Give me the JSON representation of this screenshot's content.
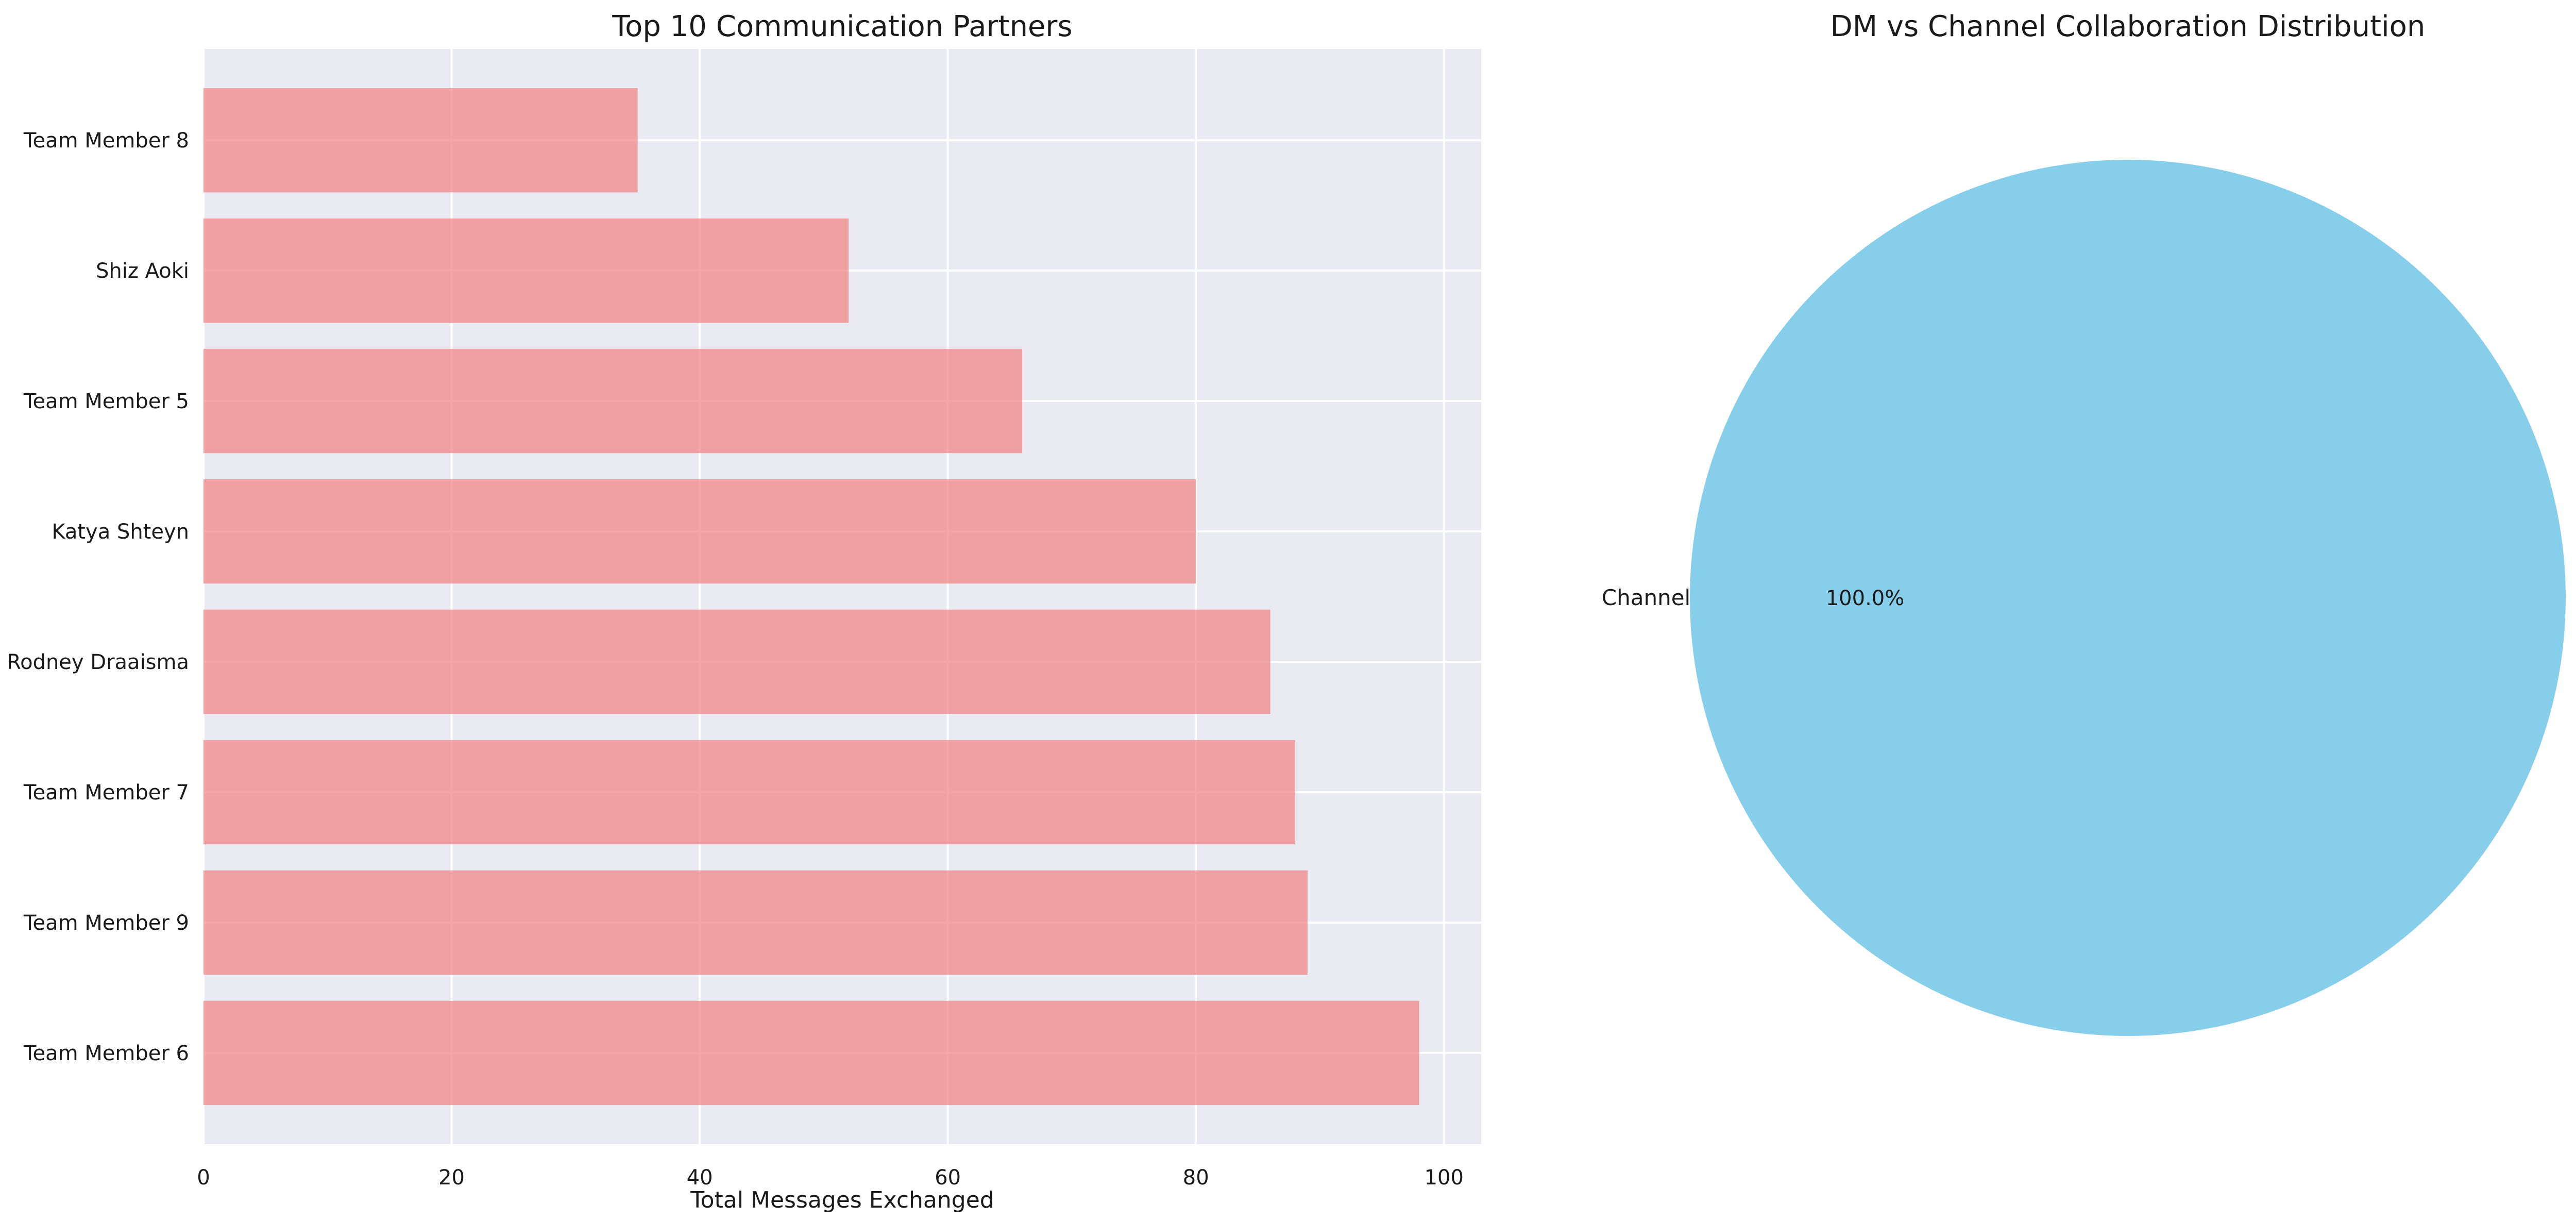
{
  "chart_data": [
    {
      "type": "bar",
      "orientation": "horizontal",
      "title": "Top 10 Communication Partners",
      "xlabel": "Total Messages Exchanged",
      "ylabel": "",
      "categories": [
        "Team Member 6",
        "Team Member 9",
        "Team Member 7",
        "Rodney Draaisma",
        "Katya Shteyn",
        "Team Member 5",
        "Shiz Aoki",
        "Team Member 8"
      ],
      "values": [
        98,
        89,
        88,
        86,
        80,
        66,
        52,
        35
      ],
      "xlim": [
        0,
        103
      ],
      "xticks": [
        0,
        20,
        40,
        60,
        80,
        100
      ],
      "xtick_labels": [
        "0",
        "20",
        "40",
        "60",
        "80",
        "100"
      ],
      "grid": true,
      "bar_color": "#f08080",
      "background_color": "#eaeaf2"
    },
    {
      "type": "pie",
      "title": "DM vs Channel Collaboration Distribution",
      "labels": [
        "Channel"
      ],
      "values": [
        100.0
      ],
      "pct_labels": [
        "100.0%"
      ],
      "colors": [
        "#87ceeb"
      ]
    }
  ]
}
